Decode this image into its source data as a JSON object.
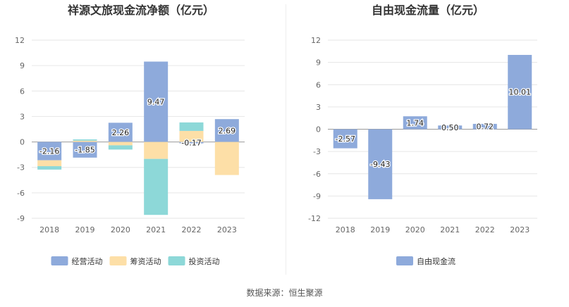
{
  "source": "数据来源：恒生聚源",
  "chart_data": [
    {
      "type": "bar",
      "stacked": true,
      "title": "祥源文旅现金流净额（亿元）",
      "categories": [
        "2018",
        "2019",
        "2020",
        "2021",
        "2022",
        "2023"
      ],
      "ylim": [
        -9,
        12
      ],
      "yticks": [
        12,
        9,
        6,
        3,
        0,
        -3,
        -6,
        -9
      ],
      "grid": true,
      "legend_position": "bottom",
      "series": [
        {
          "name": "经营活动",
          "color": "#8eaadb",
          "values": [
            -2.16,
            -1.85,
            2.26,
            9.47,
            -0.17,
            2.69
          ],
          "labels": [
            "-2.16",
            "-1.85",
            "2.26",
            "9.47",
            "-0.17",
            "2.69"
          ]
        },
        {
          "name": "筹资活动",
          "color": "#fddfa7",
          "values": [
            -0.7,
            0.15,
            -0.4,
            -2.0,
            1.3,
            -3.9
          ]
        },
        {
          "name": "投资活动",
          "color": "#8dd8d8",
          "values": [
            -0.4,
            0.15,
            -0.5,
            -6.6,
            1.0,
            0.0
          ]
        }
      ]
    },
    {
      "type": "bar",
      "title": "自由现金流量（亿元）",
      "categories": [
        "2018",
        "2019",
        "2020",
        "2021",
        "2022",
        "2023"
      ],
      "ylim": [
        -12,
        12
      ],
      "yticks": [
        12,
        9,
        6,
        3,
        0,
        -3,
        -6,
        -9,
        -12
      ],
      "grid": true,
      "legend_position": "bottom",
      "series": [
        {
          "name": "自由现金流",
          "color": "#8eaadb",
          "values": [
            -2.57,
            -9.43,
            1.74,
            0.5,
            0.72,
            10.01
          ],
          "labels": [
            "-2.57",
            "-9.43",
            "1.74",
            "0.50",
            "0.72",
            "10.01"
          ]
        }
      ]
    }
  ]
}
